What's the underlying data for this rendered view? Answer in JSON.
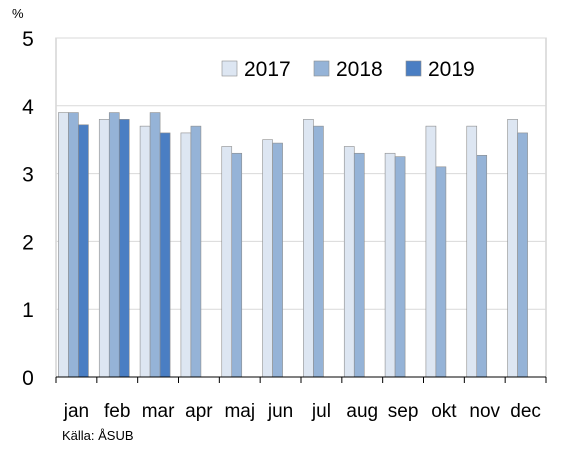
{
  "chart_data": {
    "type": "bar",
    "y_unit_label": "%",
    "categories": [
      "jan",
      "feb",
      "mar",
      "apr",
      "maj",
      "jun",
      "jul",
      "aug",
      "sep",
      "okt",
      "nov",
      "dec"
    ],
    "series": [
      {
        "name": "2017",
        "color": "#dde6f2",
        "values": [
          3.9,
          3.8,
          3.7,
          3.6,
          3.4,
          3.5,
          3.8,
          3.4,
          3.3,
          3.7,
          3.7,
          3.8
        ]
      },
      {
        "name": "2018",
        "color": "#95b3d7",
        "values": [
          3.9,
          3.9,
          3.9,
          3.7,
          3.3,
          3.45,
          3.7,
          3.3,
          3.25,
          3.1,
          3.27,
          3.6
        ]
      },
      {
        "name": "2019",
        "color": "#4a7ec3",
        "values": [
          3.72,
          3.8,
          3.6,
          null,
          null,
          null,
          null,
          null,
          null,
          null,
          null,
          null
        ]
      }
    ],
    "ylim": [
      0,
      5
    ],
    "yticks": [
      0,
      1,
      2,
      3,
      4,
      5
    ],
    "grid": true,
    "legend_position": "top-right",
    "source_note": "Källa: ÅSUB"
  }
}
